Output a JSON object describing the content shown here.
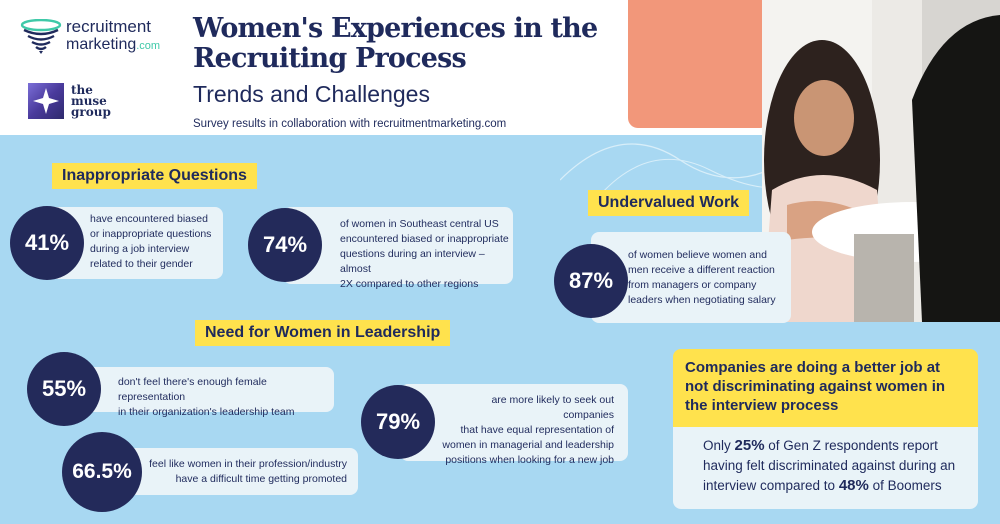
{
  "logos": {
    "rm_line1": "recruitment",
    "rm_line2": "marketing",
    "rm_suffix": ".com",
    "muse_line1": "the",
    "muse_line2": "muse",
    "muse_line3": "group"
  },
  "header": {
    "title_line1": "Women's Experiences in the",
    "title_line2": "Recruiting Process",
    "subtitle": "Trends and Challenges",
    "survey": "Survey results in collaboration with recruitmentmarketing.com"
  },
  "sections": {
    "inappropriate": "Inappropriate Questions",
    "undervalued": "Undervalued Work",
    "leadership": "Need for Women in Leadership"
  },
  "stats": [
    {
      "value": "41%",
      "lines": [
        "have encountered biased",
        "or inappropriate questions",
        "during a job interview",
        "related to their gender"
      ]
    },
    {
      "value": "74%",
      "lines": [
        "of women in Southeast central US",
        "encountered biased or inappropriate",
        "questions during an interview – almost",
        "2X compared to other regions"
      ]
    },
    {
      "value": "87%",
      "lines": [
        "of women believe women and",
        "men receive a different reaction",
        "from managers or company",
        "leaders when negotiating salary"
      ]
    },
    {
      "value": "55%",
      "lines": [
        "don't feel there's enough female representation",
        "in their organization's leadership team"
      ]
    },
    {
      "value": "79%",
      "lines": [
        "are more likely to seek out companies",
        "that have equal representation of",
        "women in managerial and leadership",
        "positions when looking for a new job"
      ]
    },
    {
      "value": "66.5%",
      "lines": [
        "feel like women in their profession/industry",
        "have a difficult time getting promoted"
      ]
    }
  ],
  "callout": {
    "heading": "Companies are doing a better job at not discriminating against women in the interview process",
    "only": "Only ",
    "pct1": "25%",
    "mid": " of Gen Z respondents report having felt discriminated against during an interview compared to ",
    "pct2": "48%",
    "end": " of Boomers"
  },
  "colors": {
    "navy": "#232a5a",
    "sky": "#a8d8f2",
    "yellow": "#ffe24d",
    "card": "#e9f3f8",
    "coral": "#f2977a",
    "mint": "#3fc9a8"
  }
}
